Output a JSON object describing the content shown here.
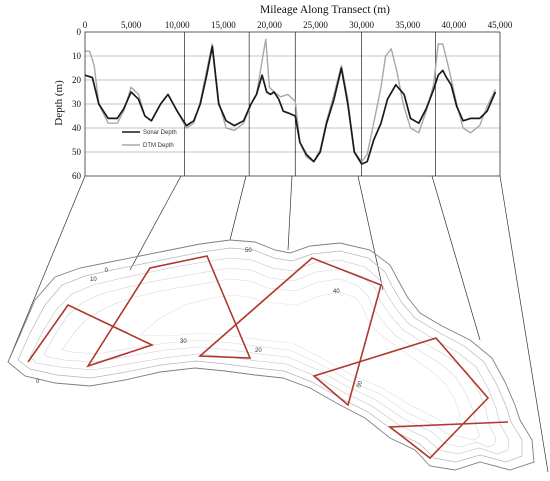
{
  "chart_data": {
    "type": "line",
    "title": "Mileage Along Transect (m)",
    "xlabel": "",
    "ylabel": "Depth (m)",
    "xlim": [
      0,
      45000
    ],
    "ylim": [
      60,
      0
    ],
    "x_ticks": [
      0,
      5000,
      10000,
      15000,
      20000,
      25000,
      30000,
      35000,
      40000,
      45000
    ],
    "x_tick_labels": [
      "0",
      "5,000",
      "10,000",
      "15,000",
      "20,000",
      "25,000",
      "30,000",
      "35,000",
      "40,000",
      "45,000"
    ],
    "y_ticks": [
      0,
      10,
      20,
      30,
      40,
      50,
      60
    ],
    "y_tick_labels": [
      "0",
      "10",
      "20",
      "30",
      "40",
      "50",
      "60"
    ],
    "grid": "horizontal",
    "legend_position": "lower-left",
    "series": [
      {
        "name": "Sonar Depth",
        "color": "#1a1a1a",
        "x": [
          0,
          800,
          1500,
          2500,
          3500,
          4200,
          5000,
          5800,
          6500,
          7200,
          8200,
          9000,
          10000,
          11000,
          11800,
          12500,
          13200,
          13800,
          14500,
          15300,
          16200,
          17200,
          18000,
          18600,
          19200,
          19700,
          20100,
          20500,
          21000,
          21500,
          22200,
          22800,
          23300,
          24000,
          24800,
          25500,
          26200,
          27000,
          27800,
          28500,
          29200,
          30000,
          30600,
          31300,
          32100,
          32800,
          33700,
          34600,
          35300,
          36200,
          37000,
          37800,
          38300,
          38800,
          39200,
          39700,
          40300,
          41000,
          41800,
          42800,
          43600,
          44500
        ],
        "values": [
          18,
          19,
          30,
          36,
          36,
          32,
          25,
          28,
          35,
          37,
          30,
          26,
          33,
          39,
          37,
          30,
          18,
          6,
          30,
          37,
          39,
          37,
          30,
          26,
          18,
          25,
          26,
          25,
          28,
          33,
          34,
          35,
          46,
          51,
          54,
          50,
          38,
          28,
          15,
          30,
          50,
          55,
          54,
          45,
          38,
          28,
          22,
          26,
          36,
          38,
          32,
          24,
          18,
          16,
          19,
          22,
          31,
          37,
          36,
          36,
          33,
          25
        ]
      },
      {
        "name": "DTM Depth",
        "color": "#a8a8a8",
        "x": [
          0,
          500,
          1000,
          1500,
          2500,
          3500,
          4200,
          5000,
          5800,
          6500,
          7200,
          8200,
          9000,
          10000,
          11000,
          11800,
          12500,
          13200,
          13800,
          14500,
          15300,
          16200,
          17200,
          18000,
          18600,
          19200,
          19600,
          20000,
          20500,
          21200,
          22000,
          22800,
          23300,
          24000,
          24800,
          25500,
          26200,
          27000,
          27800,
          28500,
          29200,
          30000,
          30600,
          31300,
          32100,
          32600,
          33200,
          33800,
          34500,
          35300,
          36200,
          37000,
          37800,
          38300,
          38800,
          39500,
          40300,
          41000,
          41800,
          42800,
          43600,
          44500
        ],
        "values": [
          8,
          8,
          14,
          30,
          38,
          38,
          33,
          23,
          26,
          35,
          37,
          30,
          26,
          33,
          40,
          38,
          29,
          16,
          5,
          29,
          40,
          41,
          38,
          30,
          26,
          12,
          3,
          23,
          25,
          27,
          26,
          29,
          46,
          52,
          54,
          49,
          37,
          26,
          14,
          28,
          50,
          54,
          51,
          38,
          23,
          10,
          7,
          16,
          30,
          40,
          42,
          33,
          22,
          5,
          5,
          16,
          30,
          40,
          42,
          39,
          31,
          24
        ]
      }
    ]
  },
  "map": {
    "contour_labels": [
      "0",
      "0",
      "10",
      "20",
      "30",
      "40",
      "50",
      "50"
    ],
    "transect_color": "#b0372c",
    "outline_color": "#7f7f7f"
  }
}
